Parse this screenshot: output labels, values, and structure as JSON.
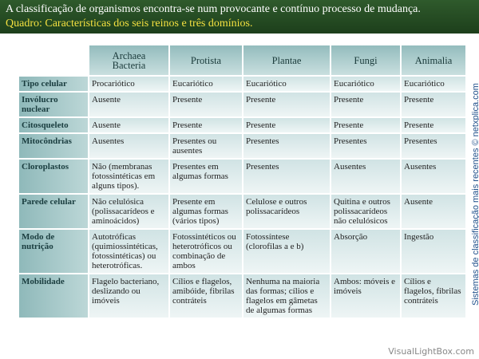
{
  "header": {
    "title": "A classificação de organismos encontra-se num provocante e contínuo processo de mudança.",
    "subtitle": "Quadro: Características dos seis reinos e três domínios."
  },
  "table": {
    "columns": [
      "Archaea Bacteria",
      "Protista",
      "Plantae",
      "Fungi",
      "Animalia"
    ],
    "rows": [
      {
        "label": "Tipo celular",
        "cells": [
          "Procariótico",
          "Eucariótico",
          "Eucariótico",
          "Eucariótico",
          "Eucariótico"
        ]
      },
      {
        "label": "Invólucro nuclear",
        "cells": [
          "Ausente",
          "Presente",
          "Presente",
          "Presente",
          "Presente"
        ]
      },
      {
        "label": "Citosqueleto",
        "cells": [
          "Ausente",
          "Presente",
          "Presente",
          "Presente",
          "Presente"
        ]
      },
      {
        "label": "Mitocôndrias",
        "cells": [
          "Ausentes",
          "Presentes ou ausentes",
          "Presentes",
          "Presentes",
          "Presentes"
        ]
      },
      {
        "label": "Cloroplastos",
        "cells": [
          "Não (membranas fotossintéticas em alguns tipos).",
          "Presentes em algumas formas",
          "Presentes",
          "Ausentes",
          "Ausentes"
        ]
      },
      {
        "label": "Parede celular",
        "cells": [
          "Não celulósica (polissacarídeos e aminoácidos)",
          "Presente em algumas formas (vários tipos)",
          "Celulose e outros polissacarídeos",
          "Quitina e outros polissacarídeos não celulósicos",
          "Ausente"
        ]
      },
      {
        "label": "Modo de nutrição",
        "cells": [
          "Autotróficas (quimiossintéticas, fotossintéticas) ou heterotróficas.",
          "Fotossintéticos ou heterotróficos ou combinação de ambos",
          "Fotossíntese (clorofilas a e b)",
          "Absorção",
          "Ingestão"
        ]
      },
      {
        "label": "Mobilidade",
        "cells": [
          "Flagelo bacteriano, deslizando ou imóveis",
          "Cílios e flagelos, amibóide, fibrilas contráteis",
          "Nenhuma na maioria das formas; cílios e flagelos em gâmetas de algumas formas",
          "Ambos: móveis e imóveis",
          "Cílios e flagelos, fibrilas contráteis"
        ]
      }
    ]
  },
  "side_note": "Sistemas de classificação mais recentes © netxplica.com",
  "watermark": "VisualLightBox.com"
}
